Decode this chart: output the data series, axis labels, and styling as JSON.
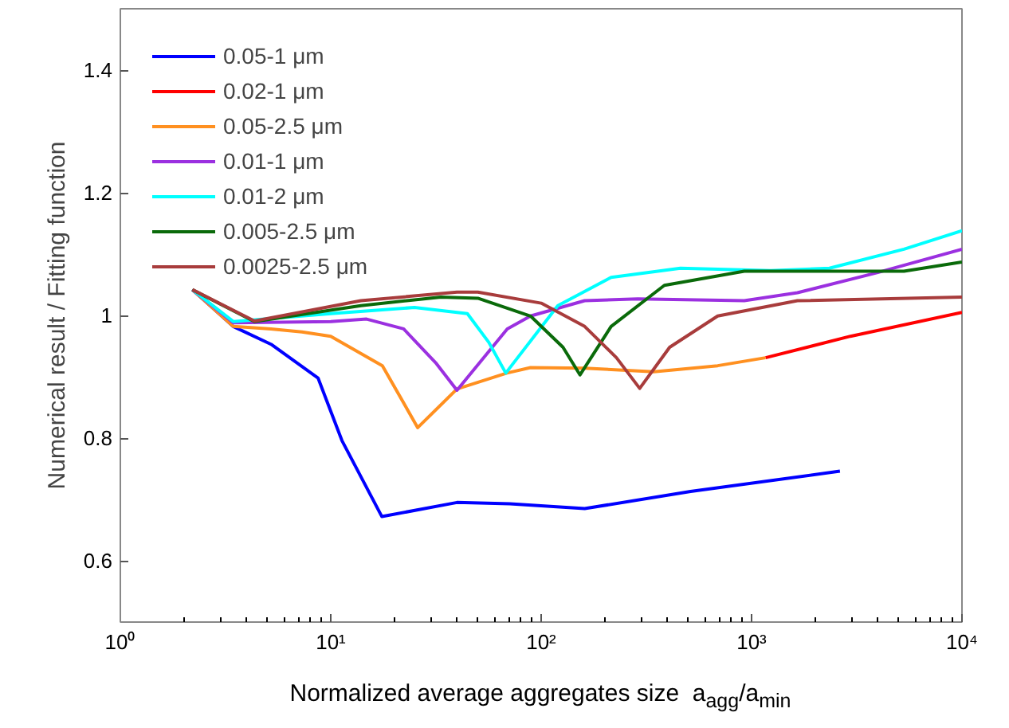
{
  "chart_data": {
    "type": "line",
    "xlabel": "Normalized average aggregates size  a$_{agg}$/a$_{min}$",
    "ylabel": "Numerical result / Fitting function",
    "log": "x",
    "grid": false,
    "legend": "top left",
    "line_style": "solid",
    "marker": "none",
    "xlim": [
      1,
      10000
    ],
    "ylim": [
      0.5,
      1.5
    ],
    "xticks": [
      {
        "value": 1,
        "label": "10⁰"
      },
      {
        "value": 10,
        "label": "10¹"
      },
      {
        "value": 100,
        "label": "10²"
      },
      {
        "value": 1000,
        "label": "10³"
      },
      {
        "value": 10000,
        "label": "10⁴"
      }
    ],
    "yticks": [
      {
        "value": 0.6,
        "label": "0.6"
      },
      {
        "value": 0.8,
        "label": "0.8"
      },
      {
        "value": 1,
        "label": "1"
      },
      {
        "value": 1.2,
        "label": "1.2"
      },
      {
        "value": 1.4,
        "label": "1.4"
      }
    ],
    "series": [
      {
        "name": "0.05-1 μm",
        "color": "#0000ff",
        "x": [
          2.2,
          3.44,
          5.2,
          8.7,
          11.3,
          17.5,
          39.8,
          71,
          161,
          513,
          2630
        ],
        "values": [
          1.042,
          0.982,
          0.953,
          0.898,
          0.796,
          0.672,
          0.695,
          0.693,
          0.685,
          0.713,
          0.746
        ]
      },
      {
        "name": "0.02-1 μm",
        "color": "#ff0000",
        "x": [
          1165,
          2950,
          10000
        ],
        "values": [
          0.931,
          0.966,
          1.005
        ]
      },
      {
        "name": "0.05-2.5 μm",
        "color": "#ff9020",
        "x": [
          2.2,
          3.44,
          5.2,
          7.3,
          10,
          17.6,
          25.9,
          39.8,
          68.7,
          89,
          161,
          343,
          690,
          1165
        ],
        "values": [
          1.042,
          0.982,
          0.978,
          0.973,
          0.966,
          0.918,
          0.817,
          0.88,
          0.906,
          0.915,
          0.914,
          0.908,
          0.918,
          0.931
        ]
      },
      {
        "name": "0.01-1 μm",
        "color": "#9b30e0",
        "x": [
          2.2,
          3.44,
          10,
          14.8,
          22.2,
          31.5,
          39.8,
          69,
          89,
          161,
          288,
          923,
          1652,
          3980,
          10000
        ],
        "values": [
          1.042,
          0.988,
          0.99,
          0.994,
          0.978,
          0.923,
          0.878,
          0.978,
          0.999,
          1.024,
          1.027,
          1.024,
          1.037,
          1.07,
          1.108
        ]
      },
      {
        "name": "0.01-2 μm",
        "color": "#00ffff",
        "x": [
          2.2,
          3.44,
          10,
          25,
          44.6,
          56.4,
          67.9,
          120,
          215,
          459,
          1233,
          2345,
          5300,
          10000
        ],
        "values": [
          1.042,
          0.99,
          1.003,
          1.013,
          1.003,
          0.956,
          0.906,
          1.016,
          1.062,
          1.077,
          1.073,
          1.077,
          1.108,
          1.138
        ]
      },
      {
        "name": "0.005-2.5 μm",
        "color": "#0a6a0a",
        "x": [
          2.2,
          4.34,
          13.9,
          33.4,
          50,
          89,
          127,
          153,
          215,
          385,
          923,
          2950,
          5300,
          10000
        ],
        "values": [
          1.042,
          0.99,
          1.016,
          1.03,
          1.028,
          0.999,
          0.948,
          0.903,
          0.982,
          1.049,
          1.072,
          1.072,
          1.072,
          1.087
        ]
      },
      {
        "name": "0.0025-2.5 μm",
        "color": "#a83c3c",
        "x": [
          2.2,
          4.34,
          13.9,
          39.8,
          50,
          100,
          161,
          228,
          294,
          408,
          690,
          1652,
          10000
        ],
        "values": [
          1.042,
          0.991,
          1.024,
          1.038,
          1.038,
          1.02,
          0.982,
          0.931,
          0.881,
          0.948,
          0.999,
          1.024,
          1.03
        ]
      }
    ]
  }
}
